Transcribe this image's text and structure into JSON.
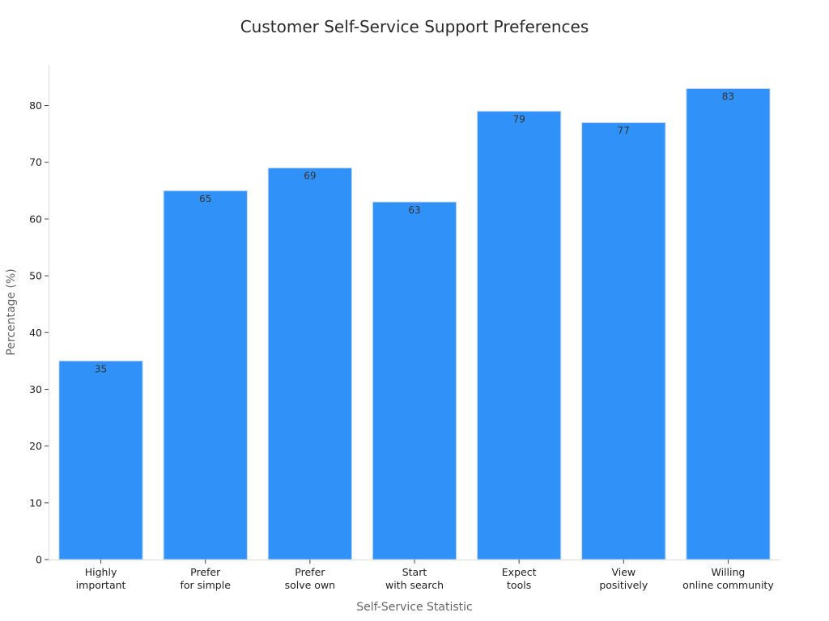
{
  "chart_data": {
    "type": "bar",
    "title": "Customer Self-Service Support Preferences",
    "xlabel": "Self-Service Statistic",
    "ylabel": "Percentage (%)",
    "categories": [
      [
        "Highly",
        "important"
      ],
      [
        "Prefer",
        "for simple"
      ],
      [
        "Prefer",
        "solve own"
      ],
      [
        "Start",
        "with search"
      ],
      [
        "Expect",
        "tools"
      ],
      [
        "View",
        "positively"
      ],
      [
        "Willing",
        "online community"
      ]
    ],
    "values": [
      35,
      65,
      69,
      63,
      79,
      77,
      83
    ],
    "data_labels": [
      "35",
      "65",
      "69",
      "63",
      "79",
      "77",
      "83"
    ],
    "ylim": [
      0,
      87.2
    ],
    "yticks": [
      0,
      10,
      20,
      30,
      40,
      50,
      60,
      70,
      80
    ],
    "grid": false,
    "bar_color": "#3092f8",
    "bar_edge_color": "#c9d9ee"
  }
}
